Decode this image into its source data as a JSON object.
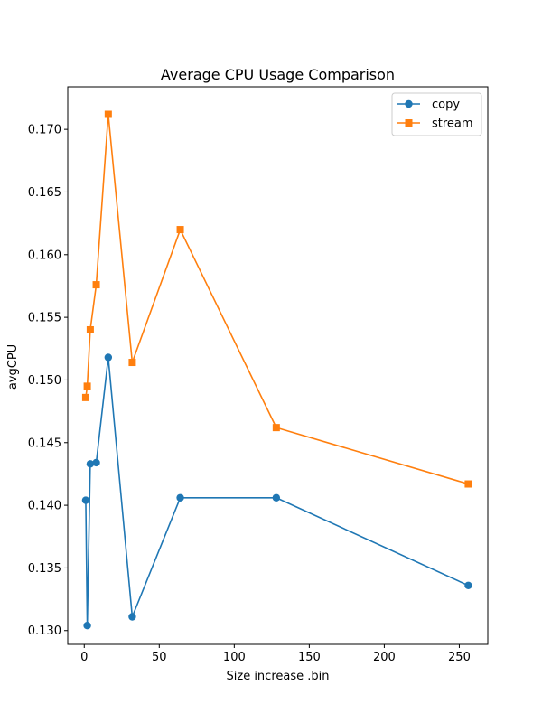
{
  "chart_data": {
    "type": "line",
    "title": "Average CPU Usage Comparison",
    "xlabel": "Size increase .bin",
    "ylabel": "avgCPU",
    "xlim": [
      -11,
      269
    ],
    "ylim": [
      0.1289,
      0.1734
    ],
    "xticks": [
      0,
      50,
      100,
      150,
      200,
      250
    ],
    "xtick_labels": [
      "0",
      "50",
      "100",
      "150",
      "200",
      "250"
    ],
    "yticks": [
      0.13,
      0.135,
      0.14,
      0.145,
      0.15,
      0.155,
      0.16,
      0.165,
      0.17
    ],
    "ytick_labels": [
      "0.130",
      "0.135",
      "0.140",
      "0.145",
      "0.150",
      "0.155",
      "0.160",
      "0.165",
      "0.170"
    ],
    "grid": false,
    "legend_position": "top-right",
    "series": [
      {
        "name": "copy",
        "color": "#1f77b4",
        "marker": "circle",
        "x": [
          1,
          2,
          4,
          8,
          16,
          32,
          64,
          128,
          256
        ],
        "y": [
          0.1404,
          0.1304,
          0.1433,
          0.1434,
          0.1518,
          0.1311,
          0.1406,
          0.1406,
          0.1336
        ]
      },
      {
        "name": "stream",
        "color": "#ff7f0e",
        "marker": "square",
        "x": [
          1,
          2,
          4,
          8,
          16,
          32,
          64,
          128,
          256
        ],
        "y": [
          0.1486,
          0.1495,
          0.154,
          0.1576,
          0.1712,
          0.1514,
          0.162,
          0.1462,
          0.1417
        ]
      }
    ]
  }
}
